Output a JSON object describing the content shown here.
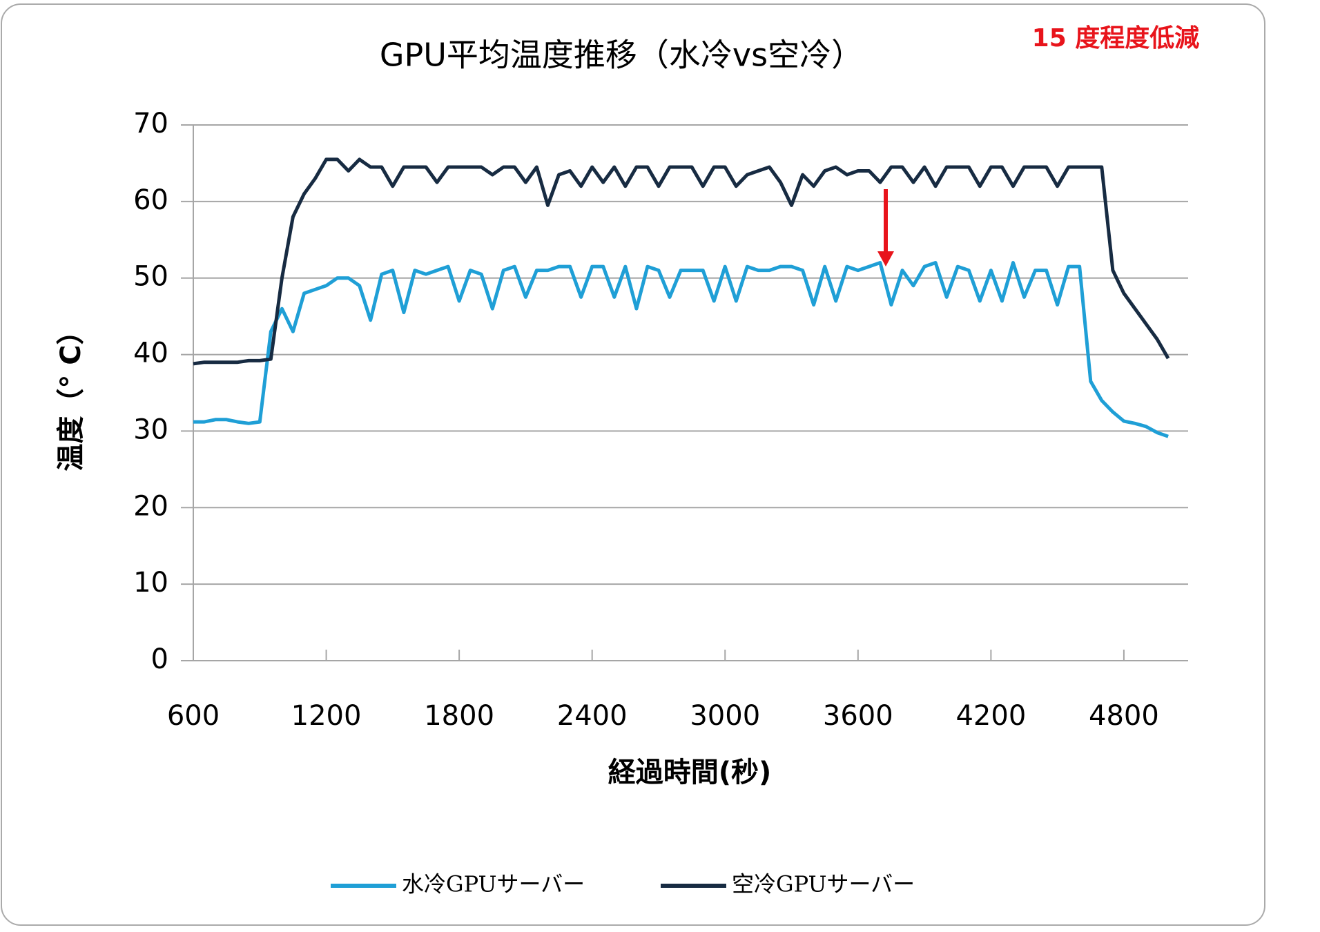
{
  "chart_data": {
    "type": "line",
    "title": "GPU平均温度推移（水冷vs空冷）",
    "annotation": "15 度程度低減",
    "x_label": "経過時間(秒)",
    "y_label": "温度（° C）",
    "x": [
      600,
      650,
      700,
      750,
      800,
      850,
      900,
      950,
      1000,
      1050,
      1100,
      1150,
      1200,
      1250,
      1300,
      1350,
      1400,
      1450,
      1500,
      1550,
      1600,
      1650,
      1700,
      1750,
      1800,
      1850,
      1900,
      1950,
      2000,
      2050,
      2100,
      2150,
      2200,
      2250,
      2300,
      2350,
      2400,
      2450,
      2500,
      2550,
      2600,
      2650,
      2700,
      2750,
      2800,
      2850,
      2900,
      2950,
      3000,
      3050,
      3100,
      3150,
      3200,
      3250,
      3300,
      3350,
      3400,
      3450,
      3500,
      3550,
      3600,
      3650,
      3700,
      3750,
      3800,
      3850,
      3900,
      3950,
      4000,
      4050,
      4100,
      4150,
      4200,
      4250,
      4300,
      4350,
      4400,
      4450,
      4500,
      4550,
      4600,
      4650,
      4700,
      4750,
      4800,
      4850,
      4900,
      4950,
      5000
    ],
    "series": [
      {
        "name": "水冷GPUサーバー",
        "color": "#1f9fd6",
        "values": [
          31.2,
          31.2,
          31.5,
          31.5,
          31.2,
          31,
          31.2,
          43,
          46,
          43,
          48,
          48.5,
          49,
          50,
          50,
          49,
          44.5,
          50.5,
          51,
          45.5,
          51,
          50.5,
          51,
          51.5,
          47,
          51,
          50.5,
          46,
          51,
          51.5,
          47.5,
          51,
          51,
          51.5,
          51.5,
          47.5,
          51.5,
          51.5,
          47.5,
          51.5,
          46,
          51.5,
          51,
          47.5,
          51,
          51,
          51,
          47,
          51.5,
          47,
          51.5,
          51,
          51,
          51.5,
          51.5,
          51,
          46.5,
          51.5,
          47,
          51.5,
          51,
          51.5,
          52,
          46.5,
          51,
          49,
          51.5,
          52,
          47.5,
          51.5,
          51,
          47,
          51,
          47,
          52,
          47.5,
          51,
          51,
          46.5,
          51.5,
          51.5,
          36.5,
          34,
          32.5,
          31.3,
          31,
          30.6,
          29.8,
          29.3
        ]
      },
      {
        "name": "空冷GPUサーバー",
        "color": "#172b42",
        "values": [
          38.8,
          39,
          39,
          39,
          39,
          39.2,
          39.2,
          39.4,
          50,
          58,
          61,
          63,
          65.5,
          65.5,
          64,
          65.5,
          64.5,
          64.5,
          62,
          64.5,
          64.5,
          64.5,
          62.5,
          64.5,
          64.5,
          64.5,
          64.5,
          63.5,
          64.5,
          64.5,
          62.5,
          64.5,
          59.5,
          63.5,
          64,
          62,
          64.5,
          62.5,
          64.5,
          62,
          64.5,
          64.5,
          62,
          64.5,
          64.5,
          64.5,
          62,
          64.5,
          64.5,
          62,
          63.5,
          64,
          64.5,
          62.5,
          59.5,
          63.5,
          62,
          64,
          64.5,
          63.5,
          64,
          64,
          62.5,
          64.5,
          64.5,
          62.5,
          64.5,
          62,
          64.5,
          64.5,
          64.5,
          62,
          64.5,
          64.5,
          62,
          64.5,
          64.5,
          64.5,
          62,
          64.5,
          64.5,
          64.5,
          64.5,
          51,
          48,
          46,
          44,
          42,
          39.5
        ]
      }
    ],
    "xlim": [
      600,
      5090
    ],
    "xticks": [
      600,
      1200,
      1800,
      2400,
      3000,
      3600,
      4200,
      4800
    ],
    "ylim": [
      0,
      70
    ],
    "yticks": [
      0,
      10,
      20,
      30,
      40,
      50,
      60,
      70
    ],
    "grid": true
  }
}
